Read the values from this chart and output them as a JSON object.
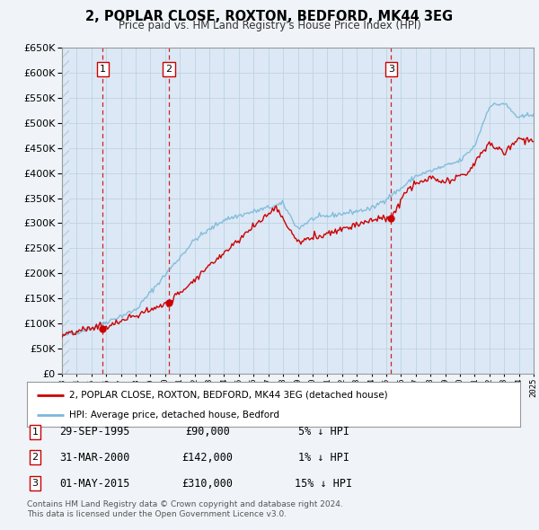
{
  "title": "2, POPLAR CLOSE, ROXTON, BEDFORD, MK44 3EG",
  "subtitle": "Price paid vs. HM Land Registry's House Price Index (HPI)",
  "property_label": "2, POPLAR CLOSE, ROXTON, BEDFORD, MK44 3EG (detached house)",
  "hpi_label": "HPI: Average price, detached house, Bedford",
  "transactions": [
    {
      "num": 1,
      "date_label": "29-SEP-1995",
      "price": 90000,
      "pct": "5%",
      "year": 1995.75
    },
    {
      "num": 2,
      "date_label": "31-MAR-2000",
      "price": 142000,
      "pct": "1%",
      "year": 2000.25
    },
    {
      "num": 3,
      "date_label": "01-MAY-2015",
      "price": 310000,
      "pct": "15%",
      "year": 2015.33
    }
  ],
  "footer1": "Contains HM Land Registry data © Crown copyright and database right 2024.",
  "footer2": "This data is licensed under the Open Government Licence v3.0.",
  "ylim": [
    0,
    650000
  ],
  "xmin": 1993,
  "xmax": 2025,
  "background_color": "#f0f4f8",
  "plot_bg": "#dce8f5",
  "grid_color": "#b8cfe0",
  "red_color": "#cc0000",
  "blue_color": "#7ab8d8"
}
